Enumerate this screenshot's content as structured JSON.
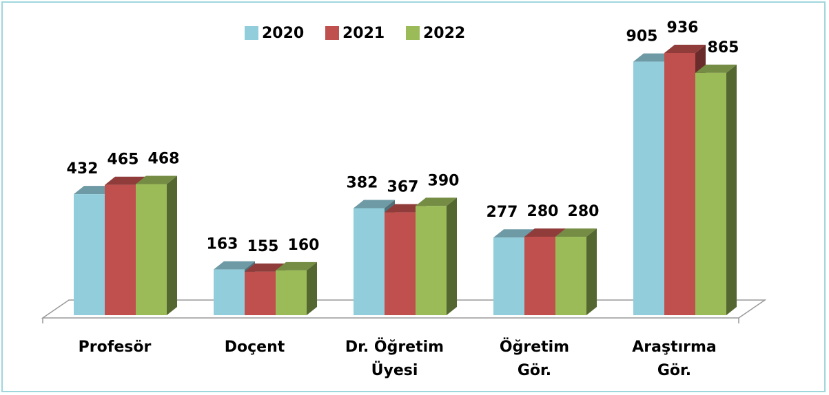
{
  "chart_data": {
    "type": "bar3d",
    "categories": [
      "Profesör",
      "Doçent",
      "Dr. Öğretim\nÜyesi",
      "Öğretim\nGör.",
      "Araştırma\nGör."
    ],
    "series": [
      {
        "name": "2020",
        "color": "#92cddc",
        "values": [
          432,
          163,
          382,
          277,
          905
        ]
      },
      {
        "name": "2021",
        "color": "#c0504d",
        "values": [
          465,
          155,
          367,
          280,
          936
        ]
      },
      {
        "name": "2022",
        "color": "#9bbb59",
        "values": [
          468,
          160,
          390,
          280,
          865
        ]
      }
    ]
  }
}
